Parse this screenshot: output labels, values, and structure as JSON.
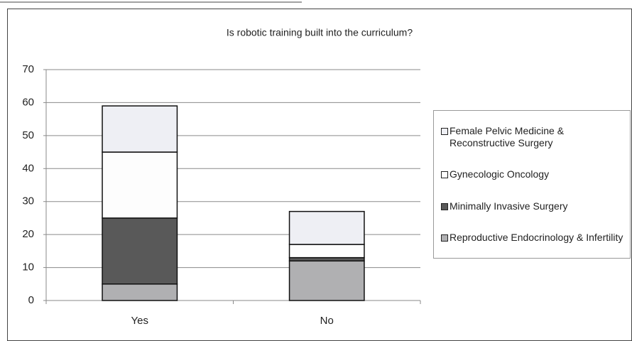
{
  "chart_data": {
    "type": "stacked_bar",
    "title": "Is robotic training built into the curriculum?",
    "categories": [
      "Yes",
      "No"
    ],
    "series": [
      {
        "name": "Reproductive Endocrinology & Infertility",
        "color": "#b0b0b2",
        "values": [
          5,
          12
        ]
      },
      {
        "name": "Minimally Invasive Surgery",
        "color": "#595959",
        "values": [
          20,
          1
        ]
      },
      {
        "name": "Gynecologic Oncology",
        "color": "#fdfdfd",
        "values": [
          20,
          4
        ]
      },
      {
        "name": "Female Pelvic Medicine & Reconstructive Surgery",
        "color": "#eeeff4",
        "values": [
          14,
          10
        ]
      }
    ],
    "ylim": [
      0,
      70
    ],
    "yticks": [
      0,
      10,
      20,
      30,
      40,
      50,
      60,
      70
    ],
    "grid": true,
    "legend": "right"
  }
}
